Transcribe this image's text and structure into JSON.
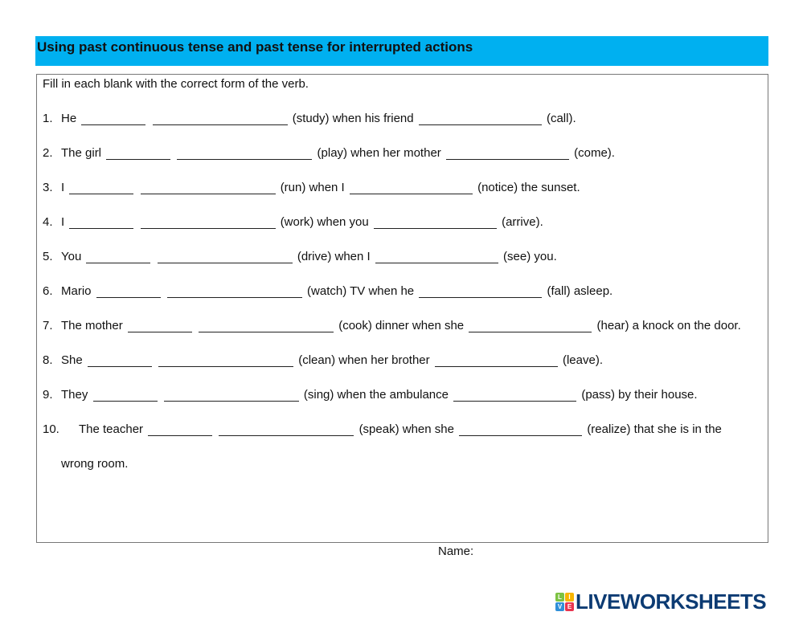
{
  "title": "Using past continuous tense and past tense for interrupted actions",
  "instruction": "Fill in each blank with the correct form of the verb.",
  "items": [
    {
      "num": "1.",
      "parts": [
        {
          "t": "He"
        },
        {
          "b": "aux"
        },
        {
          "b": "main"
        },
        {
          "t": "(study) when his friend"
        },
        {
          "b": "past"
        },
        {
          "t": "(call)."
        }
      ]
    },
    {
      "num": "2.",
      "parts": [
        {
          "t": "The girl"
        },
        {
          "b": "aux"
        },
        {
          "b": "main"
        },
        {
          "t": "(play) when her mother"
        },
        {
          "b": "past"
        },
        {
          "t": "(come)."
        }
      ]
    },
    {
      "num": "3.",
      "parts": [
        {
          "t": "I"
        },
        {
          "b": "aux"
        },
        {
          "b": "main"
        },
        {
          "t": "(run) when I"
        },
        {
          "b": "past"
        },
        {
          "t": "(notice) the sunset."
        }
      ]
    },
    {
      "num": "4.",
      "parts": [
        {
          "t": "I"
        },
        {
          "b": "aux"
        },
        {
          "b": "main"
        },
        {
          "t": "(work) when you"
        },
        {
          "b": "past"
        },
        {
          "t": "(arrive)."
        }
      ]
    },
    {
      "num": "5.",
      "parts": [
        {
          "t": "You"
        },
        {
          "b": "aux"
        },
        {
          "b": "main"
        },
        {
          "t": "(drive) when I"
        },
        {
          "b": "past"
        },
        {
          "t": "(see) you."
        }
      ]
    },
    {
      "num": "6.",
      "parts": [
        {
          "t": "Mario"
        },
        {
          "b": "aux"
        },
        {
          "b": "main"
        },
        {
          "t": "(watch) TV when he"
        },
        {
          "b": "past"
        },
        {
          "t": "(fall) asleep."
        }
      ]
    },
    {
      "num": "7.",
      "parts": [
        {
          "t": "The mother"
        },
        {
          "b": "aux"
        },
        {
          "b": "main"
        },
        {
          "t": "(cook) dinner when she"
        },
        {
          "b": "past"
        },
        {
          "t": "(hear) a knock on the door."
        }
      ]
    },
    {
      "num": "8.",
      "parts": [
        {
          "t": "She"
        },
        {
          "b": "aux"
        },
        {
          "b": "main"
        },
        {
          "t": "(clean) when her brother"
        },
        {
          "b": "past"
        },
        {
          "t": "(leave)."
        }
      ]
    },
    {
      "num": "9.",
      "parts": [
        {
          "t": "They"
        },
        {
          "b": "aux"
        },
        {
          "b": "main"
        },
        {
          "t": "(sing) when the ambulance"
        },
        {
          "b": "past"
        },
        {
          "t": "(pass) by their house."
        }
      ]
    },
    {
      "num": "10.",
      "wide": true,
      "parts": [
        {
          "t": "The teacher"
        },
        {
          "b": "aux"
        },
        {
          "b": "main"
        },
        {
          "t": "(speak) when she"
        },
        {
          "b": "past"
        },
        {
          "t": "(realize) that she is in the wrong room."
        }
      ]
    }
  ],
  "name_label": "Name:",
  "logo": {
    "text": "LIVEWORKSHEETS",
    "tiles": [
      "L",
      "I",
      "V",
      "E"
    ],
    "tile_colors": [
      "#7cc242",
      "#f7b500",
      "#2f8fd8",
      "#e8344e"
    ],
    "color": "#0c3b73"
  },
  "colors": {
    "header_bg": "#00b0f0"
  }
}
